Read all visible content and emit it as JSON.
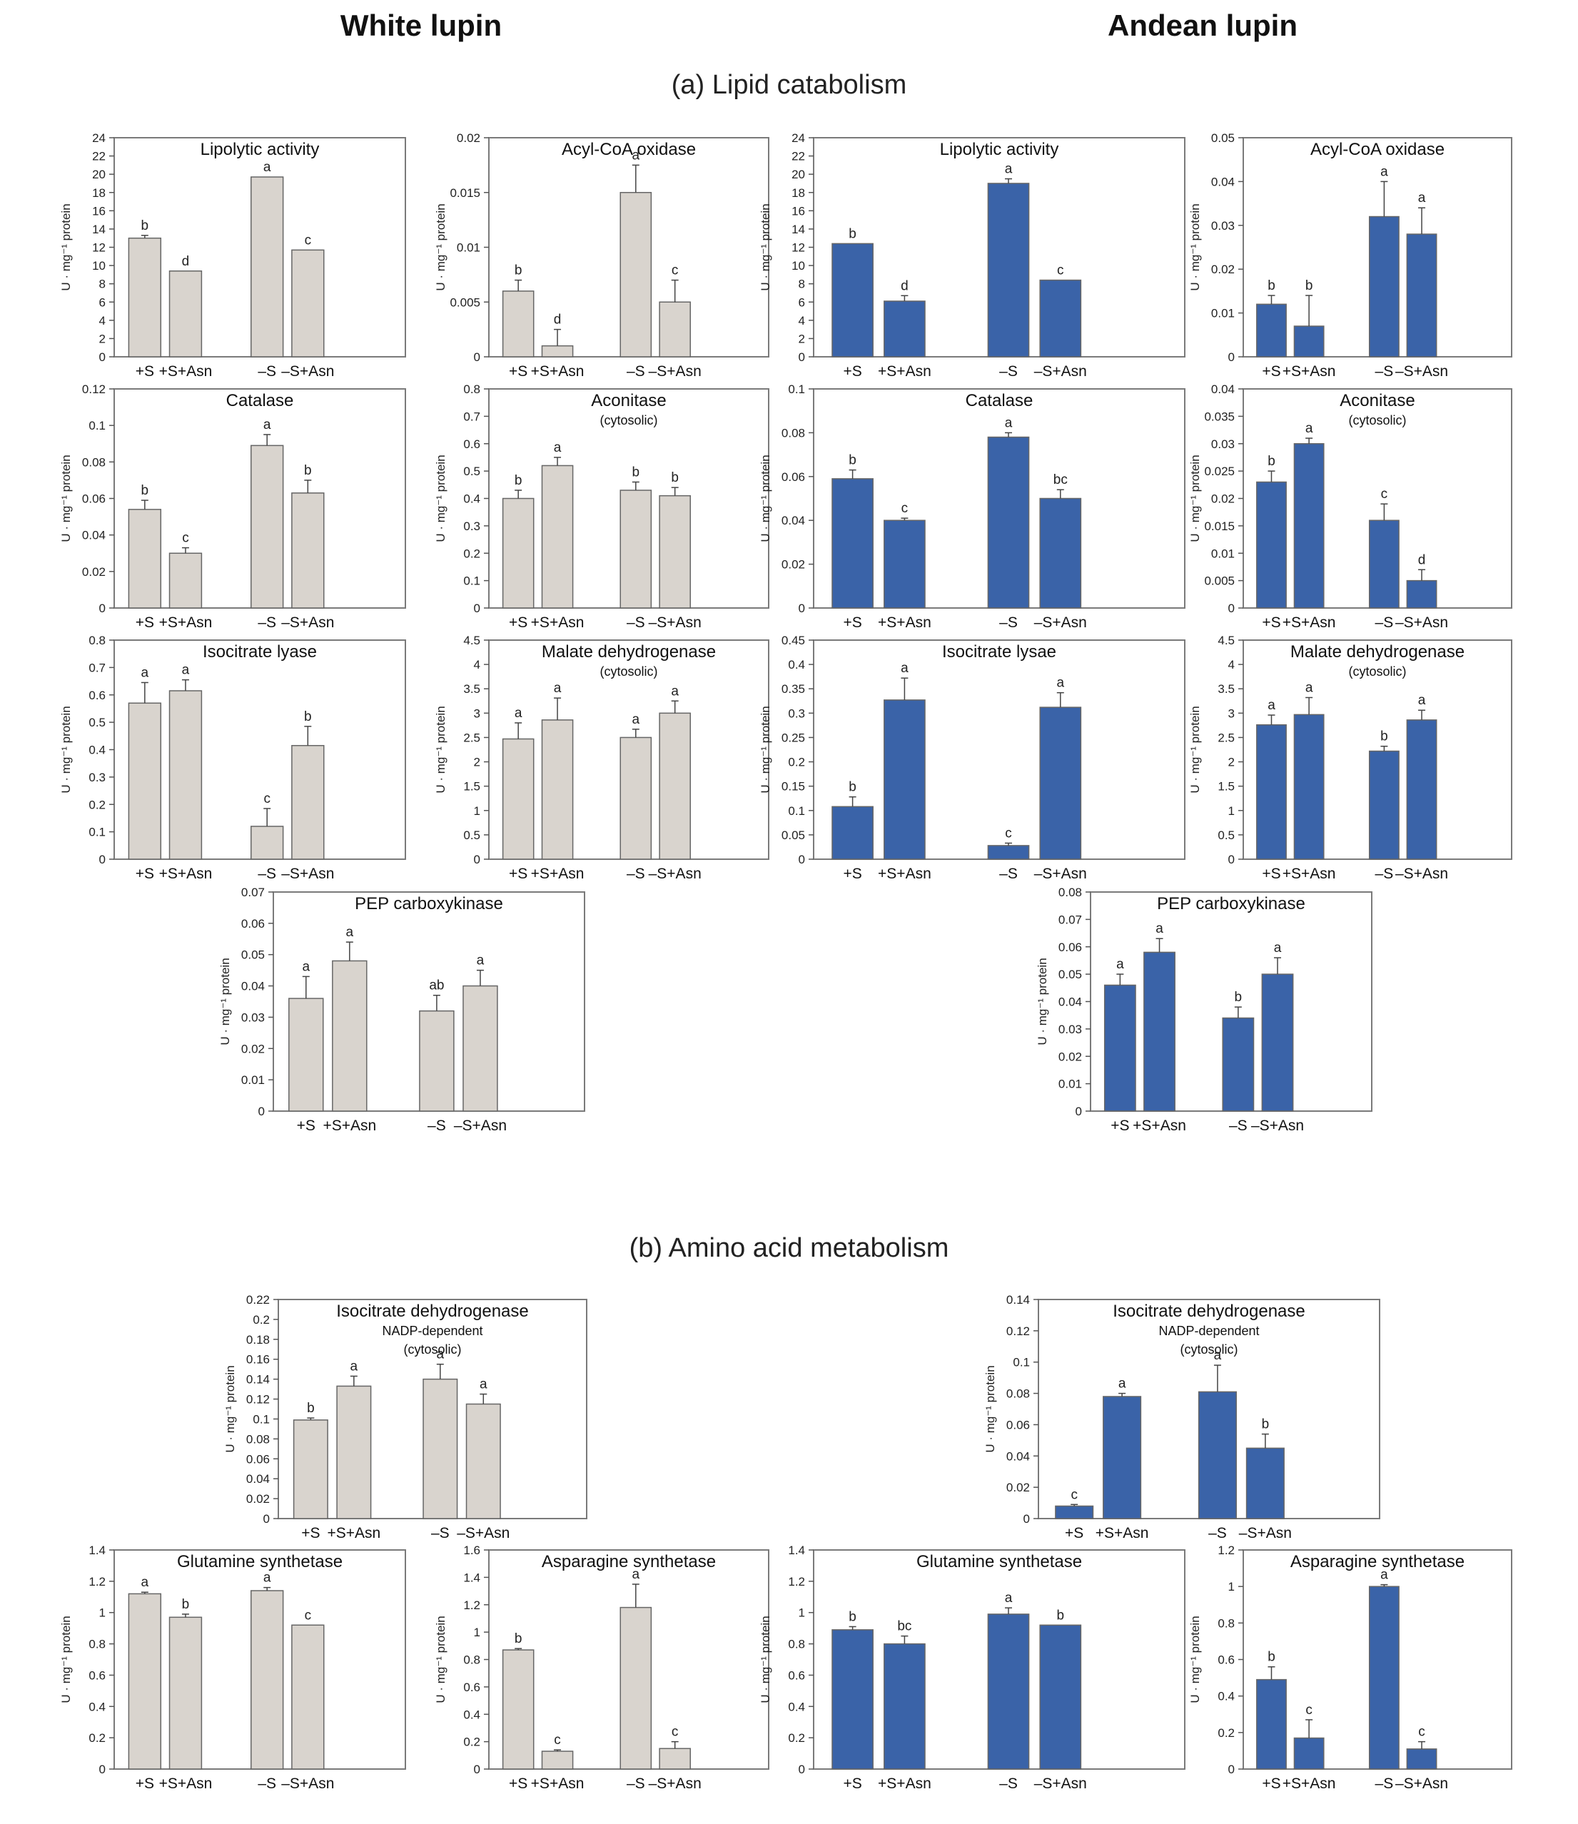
{
  "columns": {
    "left": "White lupin",
    "right": "Andean lupin"
  },
  "sections": {
    "a": "(a)  Lipid catabolism",
    "b": "(b)  Amino acid metabolism"
  },
  "colors": {
    "white": "#d9d4ce",
    "andean": "#3a63a8",
    "border": "#7a7a7a"
  },
  "chart_data": [
    {
      "type": "bar",
      "title": "Lipolytic activity",
      "subtitle": [],
      "ylabel": "U · mg⁻¹ protein",
      "ylim": [
        0,
        24
      ],
      "ticks": [
        "0",
        "2",
        "4",
        "6",
        "8",
        "10",
        "12",
        "14",
        "16",
        "18",
        "20",
        "22",
        "24"
      ],
      "categories": [
        "+S",
        "+S+Asn",
        "–S",
        "–S+Asn"
      ],
      "values": [
        13,
        9.4,
        19.7,
        11.7
      ],
      "errors": [
        0.3,
        0,
        0,
        0
      ],
      "letters": [
        "b",
        "d",
        "a",
        "c"
      ],
      "color": "#d9d4ce"
    },
    {
      "type": "bar",
      "title": "Acyl-CoA oxidase",
      "subtitle": [],
      "ylabel": "U · mg⁻¹ protein",
      "ylim": [
        0,
        0.02
      ],
      "ticks": [
        "0",
        "0.005",
        "0.01",
        "0.015",
        "0.02"
      ],
      "categories": [
        "+S",
        "+S+Asn",
        "–S",
        "–S+Asn"
      ],
      "values": [
        0.006,
        0.001,
        0.015,
        0.005
      ],
      "errors": [
        0.001,
        0.0015,
        0.0025,
        0.002
      ],
      "letters": [
        "b",
        "d",
        "a",
        "c"
      ],
      "color": "#d9d4ce"
    },
    {
      "type": "bar",
      "title": "Lipolytic activity",
      "subtitle": [],
      "ylabel": "U · mg⁻¹ protein",
      "ylim": [
        0,
        24
      ],
      "ticks": [
        "0",
        "2",
        "4",
        "6",
        "8",
        "10",
        "12",
        "14",
        "16",
        "18",
        "20",
        "22",
        "24"
      ],
      "categories": [
        "+S",
        "+S+Asn",
        "–S",
        "–S+Asn"
      ],
      "values": [
        12.4,
        6.1,
        19,
        8.4
      ],
      "errors": [
        0,
        0.6,
        0.5,
        0
      ],
      "letters": [
        "b",
        "d",
        "a",
        "c"
      ],
      "color": "#3a63a8"
    },
    {
      "type": "bar",
      "title": "Acyl-CoA oxidase",
      "subtitle": [],
      "ylabel": "U · mg⁻¹ protein",
      "ylim": [
        0,
        0.05
      ],
      "ticks": [
        "0",
        "0.01",
        "0.02",
        "0.03",
        "0.04",
        "0.05"
      ],
      "categories": [
        "+S",
        "+S+Asn",
        "–S",
        "–S+Asn"
      ],
      "values": [
        0.012,
        0.007,
        0.032,
        0.028
      ],
      "errors": [
        0.002,
        0.007,
        0.008,
        0.006
      ],
      "letters": [
        "b",
        "b",
        "a",
        "a"
      ],
      "color": "#3a63a8"
    },
    {
      "type": "bar",
      "title": "Catalase",
      "subtitle": [],
      "ylabel": "U · mg⁻¹ protein",
      "ylim": [
        0,
        0.12
      ],
      "ticks": [
        "0",
        "0.02",
        "0.04",
        "0.06",
        "0.08",
        "0.1",
        "0.12"
      ],
      "categories": [
        "+S",
        "+S+Asn",
        "–S",
        "–S+Asn"
      ],
      "values": [
        0.054,
        0.03,
        0.089,
        0.063
      ],
      "errors": [
        0.005,
        0.003,
        0.006,
        0.007
      ],
      "letters": [
        "b",
        "c",
        "a",
        "b"
      ],
      "color": "#d9d4ce"
    },
    {
      "type": "bar",
      "title": "Aconitase",
      "subtitle": [
        "(cytosolic)"
      ],
      "ylabel": "U · mg⁻¹ protein",
      "ylim": [
        0,
        0.8
      ],
      "ticks": [
        "0",
        "0.1",
        "0.2",
        "0.3",
        "0.4",
        "0.5",
        "0.6",
        "0.7",
        "0.8"
      ],
      "categories": [
        "+S",
        "+S+Asn",
        "–S",
        "–S+Asn"
      ],
      "values": [
        0.4,
        0.52,
        0.43,
        0.41
      ],
      "errors": [
        0.03,
        0.03,
        0.03,
        0.03
      ],
      "letters": [
        "b",
        "a",
        "b",
        "b"
      ],
      "color": "#d9d4ce"
    },
    {
      "type": "bar",
      "title": "Catalase",
      "subtitle": [],
      "ylabel": "U · mg⁻¹ protein",
      "ylim": [
        0,
        0.1
      ],
      "ticks": [
        "0",
        "0.02",
        "0.04",
        "0.06",
        "0.08",
        "0.1"
      ],
      "categories": [
        "+S",
        "+S+Asn",
        "–S",
        "–S+Asn"
      ],
      "values": [
        0.059,
        0.04,
        0.078,
        0.05
      ],
      "errors": [
        0.004,
        0.001,
        0.002,
        0.004
      ],
      "letters": [
        "b",
        "c",
        "a",
        "bc"
      ],
      "color": "#3a63a8"
    },
    {
      "type": "bar",
      "title": "Aconitase",
      "subtitle": [
        "(cytosolic)"
      ],
      "ylabel": "U · mg⁻¹ protein",
      "ylim": [
        0,
        0.04
      ],
      "ticks": [
        "0",
        "0.005",
        "0.01",
        "0.015",
        "0.02",
        "0.025",
        "0.03",
        "0.035",
        "0.04"
      ],
      "categories": [
        "+S",
        "+S+Asn",
        "–S",
        "–S+Asn"
      ],
      "values": [
        0.023,
        0.03,
        0.016,
        0.005
      ],
      "errors": [
        0.002,
        0.001,
        0.003,
        0.002
      ],
      "letters": [
        "b",
        "a",
        "c",
        "d"
      ],
      "color": "#3a63a8"
    },
    {
      "type": "bar",
      "title": "Isocitrate lyase",
      "subtitle": [],
      "ylabel": "U · mg⁻¹ protein",
      "ylim": [
        0,
        0.8
      ],
      "ticks": [
        "0",
        "0.1",
        "0.2",
        "0.3",
        "0.4",
        "0.5",
        "0.6",
        "0.7",
        "0.8"
      ],
      "categories": [
        "+S",
        "+S+Asn",
        "–S",
        "–S+Asn"
      ],
      "values": [
        0.57,
        0.615,
        0.12,
        0.415
      ],
      "errors": [
        0.075,
        0.04,
        0.065,
        0.07
      ],
      "letters": [
        "a",
        "a",
        "c",
        "b"
      ],
      "color": "#d9d4ce"
    },
    {
      "type": "bar",
      "title": "Malate dehydrogenase",
      "subtitle": [
        "(cytosolic)"
      ],
      "ylabel": "U · mg⁻¹ protein",
      "ylim": [
        0,
        4.5
      ],
      "ticks": [
        "0",
        "0.5",
        "1",
        "1.5",
        "2",
        "2.5",
        "3",
        "3.5",
        "4",
        "4.5"
      ],
      "categories": [
        "+S",
        "+S+Asn",
        "–S",
        "–S+Asn"
      ],
      "values": [
        2.47,
        2.86,
        2.5,
        3
      ],
      "errors": [
        0.33,
        0.45,
        0.17,
        0.25
      ],
      "letters": [
        "a",
        "a",
        "a",
        "a"
      ],
      "color": "#d9d4ce"
    },
    {
      "type": "bar",
      "title": "Isocitrate lysae",
      "subtitle": [],
      "ylabel": "U · mg⁻¹ protein",
      "ylim": [
        0,
        0.45
      ],
      "ticks": [
        "0",
        "0.05",
        "0.1",
        "0.15",
        "0.2",
        "0.25",
        "0.3",
        "0.35",
        "0.4",
        "0.45"
      ],
      "categories": [
        "+S",
        "+S+Asn",
        "–S",
        "–S+Asn"
      ],
      "values": [
        0.108,
        0.327,
        0.028,
        0.312
      ],
      "errors": [
        0.02,
        0.045,
        0.005,
        0.03
      ],
      "letters": [
        "b",
        "a",
        "c",
        "a"
      ],
      "color": "#3a63a8"
    },
    {
      "type": "bar",
      "title": "Malate dehydrogenase",
      "subtitle": [
        "(cytosolic)"
      ],
      "ylabel": "U · mg⁻¹ protein",
      "ylim": [
        0,
        4.5
      ],
      "ticks": [
        "0",
        "0.5",
        "1",
        "1.5",
        "2",
        "2.5",
        "3",
        "3.5",
        "4",
        "4.5"
      ],
      "categories": [
        "+S",
        "+S+Asn",
        "–S",
        "–S+Asn"
      ],
      "values": [
        2.76,
        2.97,
        2.22,
        2.86
      ],
      "errors": [
        0.2,
        0.35,
        0.1,
        0.2
      ],
      "letters": [
        "a",
        "a",
        "b",
        "a"
      ],
      "color": "#3a63a8"
    },
    {
      "type": "bar",
      "title": "PEP carboxykinase",
      "subtitle": [],
      "ylabel": "U · mg⁻¹ protein",
      "ylim": [
        0,
        0.07
      ],
      "ticks": [
        "0",
        "0.01",
        "0.02",
        "0.03",
        "0.04",
        "0.05",
        "0.06",
        "0.07"
      ],
      "categories": [
        "+S",
        "+S+Asn",
        "–S",
        "–S+Asn"
      ],
      "values": [
        0.036,
        0.048,
        0.032,
        0.04
      ],
      "errors": [
        0.007,
        0.006,
        0.005,
        0.005
      ],
      "letters": [
        "a",
        "a",
        "ab",
        "a"
      ],
      "color": "#d9d4ce"
    },
    {
      "type": "bar",
      "title": "PEP carboxykinase",
      "subtitle": [],
      "ylabel": "U · mg⁻¹ protein",
      "ylim": [
        0,
        0.08
      ],
      "ticks": [
        "0",
        "0.01",
        "0.02",
        "0.03",
        "0.04",
        "0.05",
        "0.06",
        "0.07",
        "0.08"
      ],
      "categories": [
        "+S",
        "+S+Asn",
        "–S",
        "–S+Asn"
      ],
      "values": [
        0.046,
        0.058,
        0.034,
        0.05
      ],
      "errors": [
        0.004,
        0.005,
        0.004,
        0.006
      ],
      "letters": [
        "a",
        "a",
        "b",
        "a"
      ],
      "color": "#3a63a8"
    },
    {
      "type": "bar",
      "title": "Isocitrate dehydrogenase",
      "subtitle": [
        "NADP-dependent",
        "(cytosolic)"
      ],
      "ylabel": "U · mg⁻¹ protein",
      "ylim": [
        0,
        0.22
      ],
      "ticks": [
        "0",
        "0.02",
        "0.04",
        "0.06",
        "0.08",
        "0.1",
        "0.12",
        "0.14",
        "0.16",
        "0.18",
        "0.2",
        "0.22"
      ],
      "categories": [
        "+S",
        "+S+Asn",
        "–S",
        "–S+Asn"
      ],
      "values": [
        0.099,
        0.133,
        0.14,
        0.115
      ],
      "errors": [
        0.002,
        0.01,
        0.015,
        0.01
      ],
      "letters": [
        "b",
        "a",
        "a",
        "a"
      ],
      "color": "#d9d4ce"
    },
    {
      "type": "bar",
      "title": "Isocitrate dehydrogenase",
      "subtitle": [
        "NADP-dependent",
        "(cytosolic)"
      ],
      "ylabel": "U · mg⁻¹ protein",
      "ylim": [
        0,
        0.14
      ],
      "ticks": [
        "0",
        "0.02",
        "0.04",
        "0.06",
        "0.08",
        "0.1",
        "0.12",
        "0.14"
      ],
      "categories": [
        "+S",
        "+S+Asn",
        "–S",
        "–S+Asn"
      ],
      "values": [
        0.008,
        0.078,
        0.081,
        0.045
      ],
      "errors": [
        0.001,
        0.002,
        0.017,
        0.009
      ],
      "letters": [
        "c",
        "a",
        "a",
        "b"
      ],
      "color": "#3a63a8"
    },
    {
      "type": "bar",
      "title": "Glutamine synthetase",
      "subtitle": [],
      "ylabel": "U · mg⁻¹ protein",
      "ylim": [
        0,
        1.4
      ],
      "ticks": [
        "0",
        "0.2",
        "0.4",
        "0.6",
        "0.8",
        "1",
        "1.2",
        "1.4"
      ],
      "categories": [
        "+S",
        "+S+Asn",
        "–S",
        "–S+Asn"
      ],
      "values": [
        1.12,
        0.97,
        1.14,
        0.92
      ],
      "errors": [
        0.01,
        0.02,
        0.02,
        0
      ],
      "letters": [
        "a",
        "b",
        "a",
        "c"
      ],
      "color": "#d9d4ce"
    },
    {
      "type": "bar",
      "title": "Asparagine synthetase",
      "subtitle": [],
      "ylabel": "U · mg⁻¹ protein",
      "ylim": [
        0,
        1.6
      ],
      "ticks": [
        "0",
        "0.2",
        "0.4",
        "0.6",
        "0.8",
        "1",
        "1.2",
        "1.4",
        "1.6"
      ],
      "categories": [
        "+S",
        "+S+Asn",
        "–S",
        "–S+Asn"
      ],
      "values": [
        0.87,
        0.13,
        1.18,
        0.15
      ],
      "errors": [
        0.01,
        0.01,
        0.17,
        0.05
      ],
      "letters": [
        "b",
        "c",
        "a",
        "c"
      ],
      "color": "#d9d4ce"
    },
    {
      "type": "bar",
      "title": "Glutamine synthetase",
      "subtitle": [],
      "ylabel": "U · mg⁻¹ protein",
      "ylim": [
        0,
        1.4
      ],
      "ticks": [
        "0",
        "0.2",
        "0.4",
        "0.6",
        "0.8",
        "1",
        "1.2",
        "1.4"
      ],
      "categories": [
        "+S",
        "+S+Asn",
        "–S",
        "–S+Asn"
      ],
      "values": [
        0.89,
        0.8,
        0.99,
        0.92
      ],
      "errors": [
        0.02,
        0.05,
        0.04,
        0
      ],
      "letters": [
        "b",
        "bc",
        "a",
        "b"
      ],
      "color": "#3a63a8"
    },
    {
      "type": "bar",
      "title": "Asparagine synthetase",
      "subtitle": [],
      "ylabel": "U · mg⁻¹ protein",
      "ylim": [
        0,
        1.2
      ],
      "ticks": [
        "0",
        "0.2",
        "0.4",
        "0.6",
        "0.8",
        "1",
        "1.2"
      ],
      "categories": [
        "+S",
        "+S+Asn",
        "–S",
        "–S+Asn"
      ],
      "values": [
        0.49,
        0.17,
        1,
        0.11
      ],
      "errors": [
        0.07,
        0.1,
        0.01,
        0.04
      ],
      "letters": [
        "b",
        "c",
        "a",
        "c"
      ],
      "color": "#3a63a8"
    }
  ]
}
